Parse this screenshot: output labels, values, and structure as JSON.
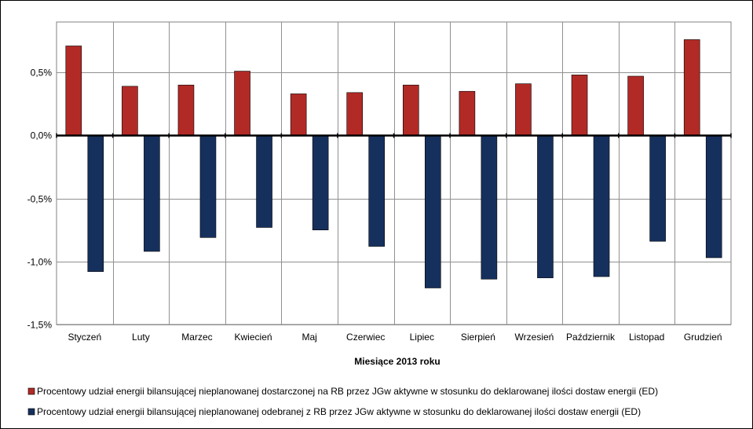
{
  "chart_data": {
    "type": "bar",
    "categories": [
      "Styczeń",
      "Luty",
      "Marzec",
      "Kwiecień",
      "Maj",
      "Czerwiec",
      "Lipiec",
      "Sierpień",
      "Wrzesień",
      "Październik",
      "Listopad",
      "Grudzień"
    ],
    "series": [
      {
        "name": "Procentowy udział energii bilansującej nieplanowanej dostarczonej na RB przez JGw aktywne w stosunku do deklarowanej ilości dostaw energii (ED)",
        "color": "#B22A26",
        "values": [
          0.71,
          0.39,
          0.4,
          0.51,
          0.33,
          0.34,
          0.4,
          0.35,
          0.41,
          0.48,
          0.47,
          0.76
        ]
      },
      {
        "name": "Procentowy udział energii bilansującej nieplanowanej odebranej z RB przez JGw aktywne w stosunku do deklarowanej ilości dostaw energii (ED)",
        "color": "#16305E",
        "values": [
          -1.08,
          -0.92,
          -0.81,
          -0.73,
          -0.75,
          -0.88,
          -1.21,
          -1.14,
          -1.13,
          -1.12,
          -0.84,
          -0.97
        ]
      }
    ],
    "yticks": [
      "0,5%",
      "0,0%",
      "-0,5%",
      "-1,0%",
      "-1,5%"
    ],
    "ytick_values": [
      0.5,
      0.0,
      -0.5,
      -1.0,
      -1.5
    ],
    "ylim": [
      -1.5,
      0.9
    ],
    "xlabel": "Miesiące 2013  roku",
    "ylabel": "",
    "grid": true,
    "legend_position": "bottom"
  }
}
